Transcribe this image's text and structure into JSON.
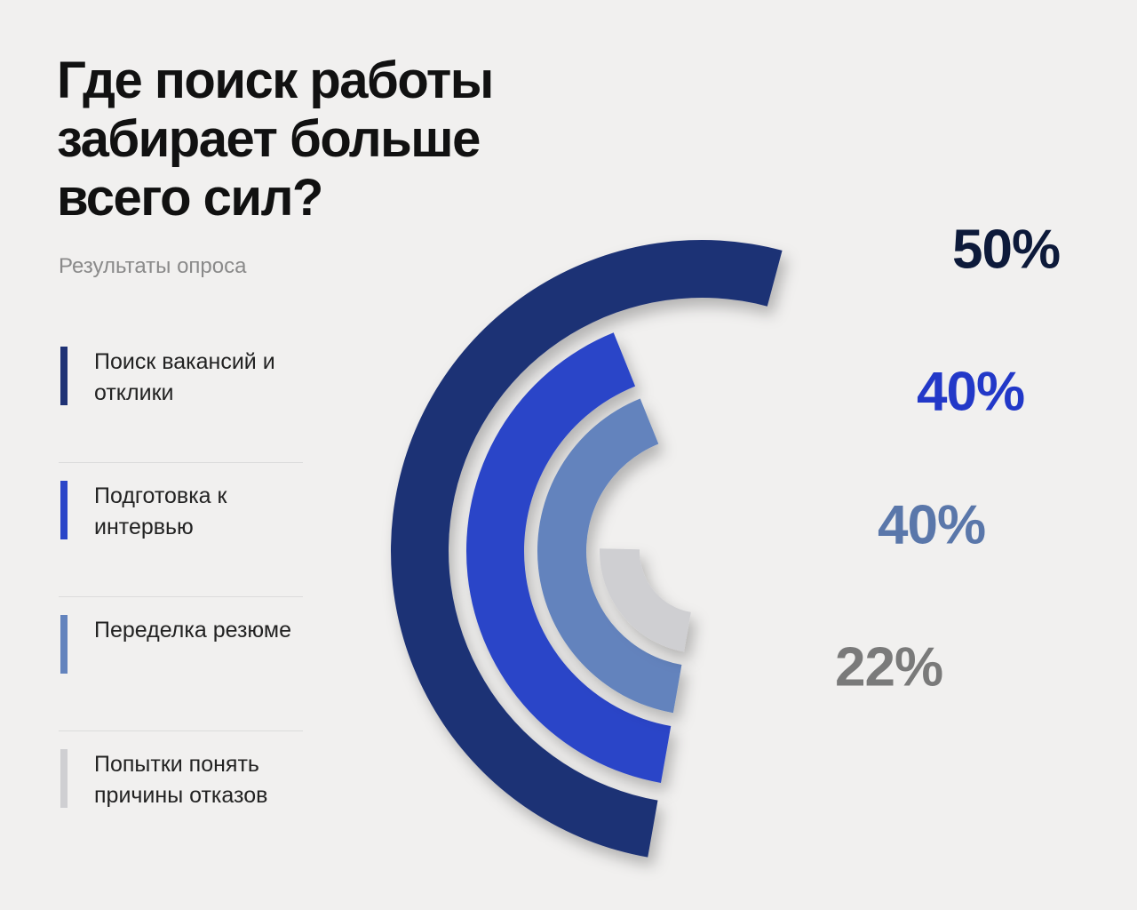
{
  "chart_data": {
    "type": "radial_bar",
    "title": "Где поиск работы забирает больше всего сил?",
    "subtitle": "Результаты опроса",
    "categories": [
      "Поиск вакансий и отклики",
      "Подготовка к интервью",
      "Переделка резюме",
      "Попытки понять причины отказов"
    ],
    "values": [
      50,
      40,
      40,
      22
    ],
    "value_labels": [
      "50%",
      "40%",
      "40%",
      "22%"
    ],
    "colors": [
      "#1f3275",
      "#2a45c8",
      "#6383bd",
      "#cfcfd2"
    ],
    "label_colors": [
      "#0d1a3a",
      "#2238c8",
      "#5a77aa",
      "#7a7a7a"
    ]
  }
}
